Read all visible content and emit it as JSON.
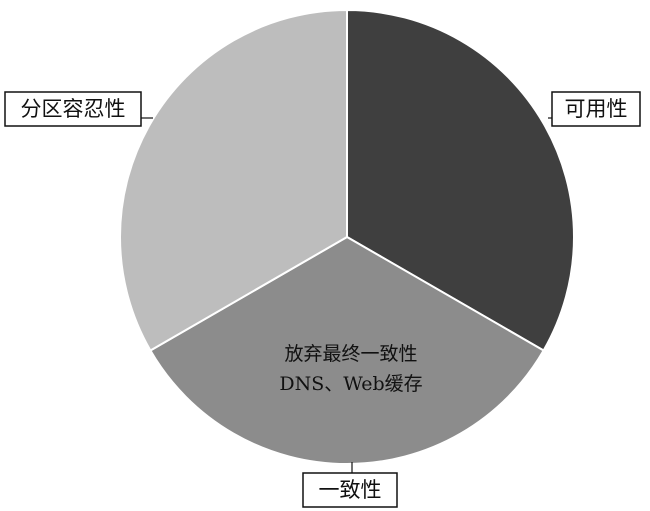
{
  "chart_data": {
    "type": "pie",
    "title": "",
    "slices": [
      {
        "label": "可用性",
        "value": 1,
        "color": "#3f3f3f"
      },
      {
        "label": "一致性",
        "value": 1,
        "color": "#8c8c8c"
      },
      {
        "label": "分区容忍性",
        "value": 1,
        "color": "#bdbdbd"
      }
    ],
    "annotation_lines": [
      "放弃最终一致性",
      "DNS、Web缓存"
    ]
  }
}
